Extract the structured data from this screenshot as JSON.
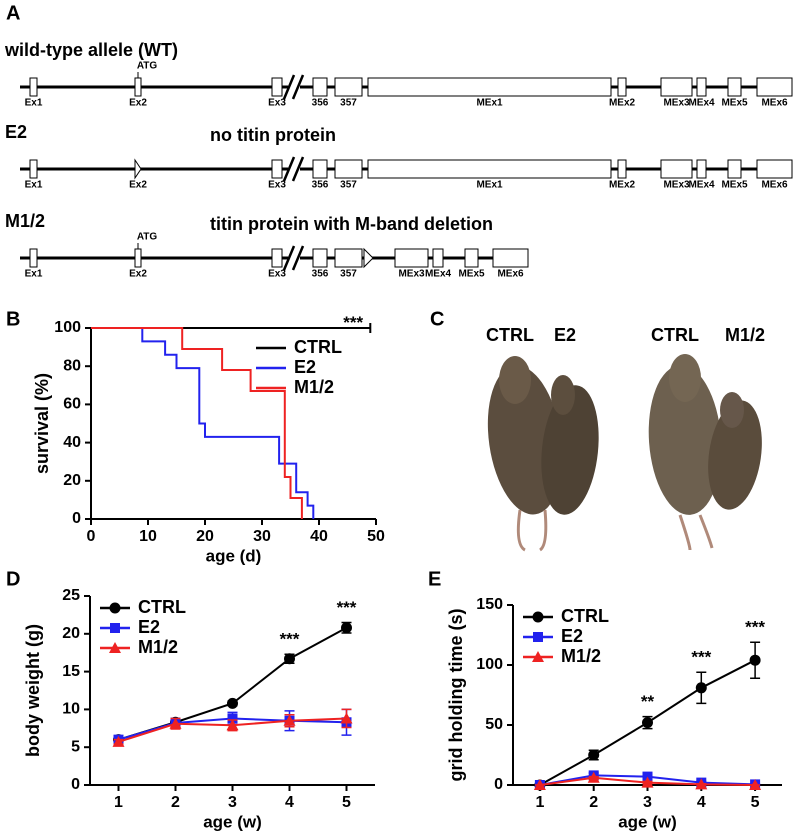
{
  "panel_labels": [
    "A",
    "B",
    "C",
    "D",
    "E"
  ],
  "diagram": {
    "alleles": [
      {
        "name": "wild-type allele (WT)",
        "atg": "ATG",
        "exons": [
          "Ex1",
          "Ex2",
          "Ex3",
          "356",
          "357",
          "MEx1",
          "MEx2",
          "MEx3",
          "MEx4",
          "MEx5",
          "MEx6"
        ]
      },
      {
        "name": "E2",
        "note": "no titin protein",
        "exons": [
          "Ex1",
          "Ex2",
          "Ex3",
          "356",
          "357",
          "MEx1",
          "MEx2",
          "MEx3",
          "MEx4",
          "MEx5",
          "MEx6"
        ]
      },
      {
        "name": "M1/2",
        "note": "titin protein with M-band deletion",
        "atg": "ATG",
        "exons": [
          "Ex1",
          "Ex2",
          "Ex3",
          "356",
          "357",
          "MEx3",
          "MEx4",
          "MEx5",
          "MEx6"
        ]
      }
    ]
  },
  "photo": {
    "labels": [
      "CTRL",
      "E2",
      "CTRL",
      "M1/2"
    ]
  },
  "chart_data": [
    {
      "type": "step",
      "xlabel": "age (d)",
      "ylabel": "survival (%)",
      "xlim": [
        0,
        50
      ],
      "ylim": [
        0,
        100
      ],
      "xticks": [
        0,
        10,
        20,
        30,
        40,
        50
      ],
      "yticks": [
        0,
        20,
        40,
        60,
        80,
        100
      ],
      "legend": "upper right",
      "series": [
        {
          "name": "CTRL",
          "color": "#000000",
          "x": [
            0,
            49
          ],
          "values": [
            100,
            100
          ]
        },
        {
          "name": "E2",
          "color": "#2222ee",
          "x": [
            0,
            9,
            9,
            13,
            13,
            15,
            15,
            19,
            19,
            20,
            20,
            33,
            33,
            36,
            36,
            38,
            38,
            39,
            39
          ],
          "values": [
            100,
            100,
            93,
            93,
            86,
            86,
            79,
            79,
            50,
            50,
            43,
            43,
            29,
            29,
            14,
            14,
            7,
            7,
            0
          ]
        },
        {
          "name": "M1/2",
          "color": "#ee2222",
          "x": [
            0,
            16,
            16,
            23,
            23,
            28,
            28,
            34,
            34,
            35,
            35,
            37,
            37
          ],
          "values": [
            100,
            100,
            89,
            89,
            78,
            78,
            67,
            67,
            22,
            22,
            11,
            11,
            0
          ]
        }
      ],
      "annotations": [
        {
          "text": "***",
          "x": 46
        }
      ]
    },
    {
      "type": "line",
      "xlabel": "age (w)",
      "ylabel": "body weight (g)",
      "xlim": [
        0.5,
        5.5
      ],
      "ylim": [
        0,
        25
      ],
      "xticks": [
        1,
        2,
        3,
        4,
        5
      ],
      "yticks": [
        0,
        5,
        10,
        15,
        20,
        25
      ],
      "legend": "upper left",
      "x": [
        1,
        2,
        3,
        4,
        5
      ],
      "series": [
        {
          "name": "CTRL",
          "color": "#000000",
          "marker": "circle",
          "values": [
            6.0,
            8.3,
            10.8,
            16.7,
            20.8
          ],
          "errors": [
            0.3,
            0.5,
            0.3,
            0.6,
            0.7
          ]
        },
        {
          "name": "E2",
          "color": "#2222ee",
          "marker": "square",
          "values": [
            6.0,
            8.2,
            8.8,
            8.5,
            8.3
          ],
          "errors": [
            0.3,
            0.6,
            0.8,
            1.3,
            1.7
          ]
        },
        {
          "name": "M1/2",
          "color": "#ee2222",
          "marker": "triangle",
          "values": [
            5.7,
            8.1,
            7.9,
            8.5,
            8.8
          ],
          "errors": [
            0.3,
            0.7,
            0.7,
            0.8,
            1.2
          ]
        }
      ],
      "annotations": [
        {
          "text": "***",
          "x": 4
        },
        {
          "text": "***",
          "x": 5
        }
      ]
    },
    {
      "type": "line",
      "xlabel": "age (w)",
      "ylabel": "grid holding time (s)",
      "xlim": [
        0.5,
        5.5
      ],
      "ylim": [
        0,
        150
      ],
      "xticks": [
        1,
        2,
        3,
        4,
        5
      ],
      "yticks": [
        0,
        50,
        100,
        150
      ],
      "legend": "upper left",
      "x": [
        1,
        2,
        3,
        4,
        5
      ],
      "series": [
        {
          "name": "CTRL",
          "color": "#000000",
          "marker": "circle",
          "values": [
            0,
            25,
            52,
            81,
            104
          ],
          "errors": [
            0,
            4,
            5,
            13,
            15
          ]
        },
        {
          "name": "E2",
          "color": "#2222ee",
          "marker": "square",
          "values": [
            0,
            8,
            7,
            2,
            0.5
          ],
          "errors": [
            0,
            2,
            2,
            1,
            0.5
          ]
        },
        {
          "name": "M1/2",
          "color": "#ee2222",
          "marker": "triangle",
          "values": [
            0,
            6,
            2,
            0.5,
            0
          ],
          "errors": [
            0,
            1,
            1,
            0.5,
            0
          ]
        }
      ],
      "annotations": [
        {
          "text": "**",
          "x": 3
        },
        {
          "text": "***",
          "x": 4
        },
        {
          "text": "***",
          "x": 5
        }
      ]
    }
  ]
}
